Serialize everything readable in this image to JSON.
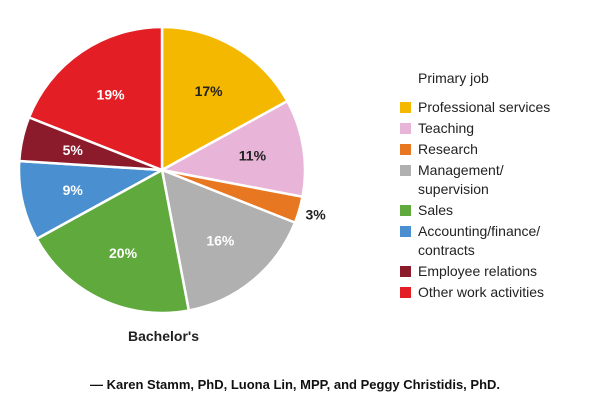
{
  "chart_data": {
    "type": "pie",
    "title": "",
    "caption": "Bachelor's",
    "legend_title": "Primary job",
    "legend_position": "right",
    "slices": [
      {
        "label": "Professional services",
        "label_lines": [
          "Professional services"
        ],
        "value": 17,
        "display": "17%",
        "color": "#F5B800",
        "text_color": "#222222"
      },
      {
        "label": "Teaching",
        "label_lines": [
          "Teaching"
        ],
        "value": 11,
        "display": "11%",
        "color": "#E8B4D8",
        "text_color": "#222222"
      },
      {
        "label": "Research",
        "label_lines": [
          "Research"
        ],
        "value": 3,
        "display": "3%",
        "color": "#E87722",
        "text_color": "#222222"
      },
      {
        "label": "Management/supervision",
        "label_lines": [
          "Management/",
          "supervision"
        ],
        "value": 16,
        "display": "16%",
        "color": "#B0B0B0",
        "text_color": "#ffffff"
      },
      {
        "label": "Sales",
        "label_lines": [
          "Sales"
        ],
        "value": 20,
        "display": "20%",
        "color": "#5FA93D",
        "text_color": "#ffffff"
      },
      {
        "label": "Accounting/finance/contracts",
        "label_lines": [
          "Accounting/finance/",
          "contracts"
        ],
        "value": 9,
        "display": "9%",
        "color": "#4A90D0",
        "text_color": "#ffffff"
      },
      {
        "label": "Employee relations",
        "label_lines": [
          "Employee relations"
        ],
        "value": 5,
        "display": "5%",
        "color": "#8B1A2B",
        "text_color": "#ffffff"
      },
      {
        "label": "Other work activities",
        "label_lines": [
          "Other work activities"
        ],
        "value": 19,
        "display": "19%",
        "color": "#E31E24",
        "text_color": "#ffffff"
      }
    ]
  },
  "credit": "— Karen Stamm, PhD, Luona Lin, MPP, and Peggy Christidis, PhD."
}
